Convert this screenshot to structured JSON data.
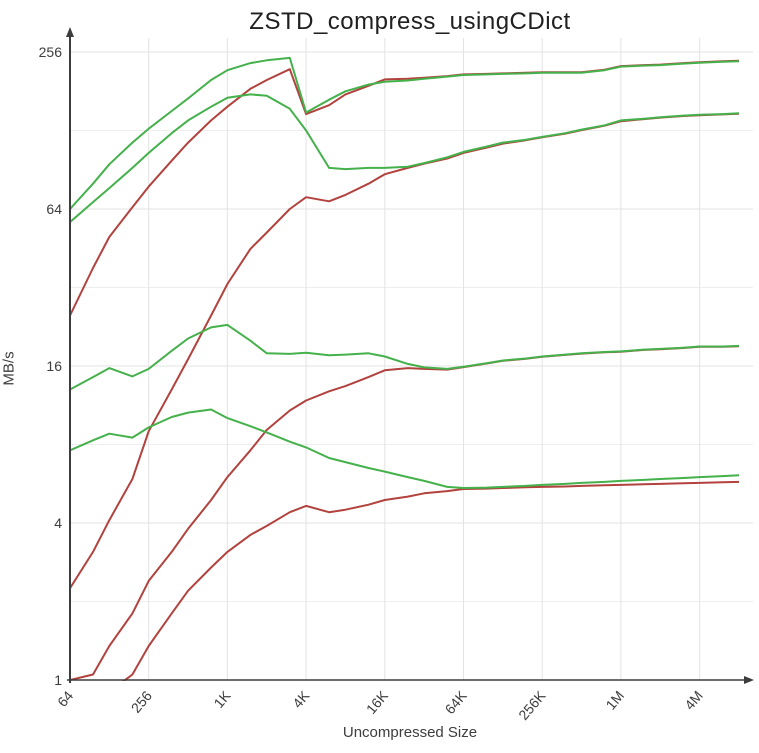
{
  "chart_data": {
    "type": "line",
    "title": "ZSTD_compress_usingCDict",
    "xlabel": "Uncompressed Size",
    "ylabel": "MB/s",
    "x_scale": "log",
    "y_scale": "log",
    "grid": true,
    "legend_position": "none",
    "x_tick_labels": [
      "64",
      "256",
      "1K",
      "4K",
      "16K",
      "64K",
      "256K",
      "1M",
      "4M"
    ],
    "y_tick_labels": [
      "1",
      "4",
      "16",
      "64",
      "256"
    ],
    "x_range_bytes": [
      64,
      8388608
    ],
    "y_range_mbps": [
      1,
      256
    ],
    "colors": {
      "green": "#44b14b",
      "red": "#b2423d",
      "grid_major": "#e3e3e3",
      "grid_minor": "#eeeeee",
      "axis": "#3d3d3d",
      "tick_text": "#3d3d3d",
      "title_text": "#202020"
    },
    "x": [
      64,
      96,
      128,
      192,
      256,
      384,
      512,
      768,
      1024,
      1536,
      2048,
      3072,
      4096,
      6144,
      8192,
      12288,
      16384,
      24576,
      32768,
      49152,
      65536,
      98304,
      131072,
      196608,
      262144,
      393216,
      524288,
      786432,
      1048576,
      1572864,
      2097152,
      3145728,
      4194304,
      6291456,
      8388608
    ],
    "series": [
      {
        "name": "red-1",
        "color": "red",
        "values": [
          25,
          38,
          50,
          65,
          78,
          98,
          115,
          140,
          158,
          185,
          200,
          220,
          148,
          160,
          176,
          190,
          201,
          202,
          204,
          207,
          210,
          211,
          212,
          213,
          214,
          214,
          214,
          219,
          226,
          228,
          229,
          232,
          234,
          236,
          237
        ]
      },
      {
        "name": "red-2",
        "color": "red",
        "values": [
          2.25,
          3.1,
          4.1,
          5.9,
          9,
          13,
          17,
          25,
          33,
          45,
          52,
          64,
          71,
          68.5,
          72.5,
          80,
          87,
          92,
          95.5,
          100,
          105,
          110,
          114,
          117.5,
          120.5,
          124.5,
          128.5,
          133.5,
          139,
          141.5,
          143.5,
          145.5,
          146.5,
          147.5,
          148.5
        ]
      },
      {
        "name": "red-3",
        "color": "red",
        "values": [
          1,
          1.05,
          1.35,
          1.8,
          2.4,
          3.1,
          3.8,
          4.9,
          6,
          7.6,
          9.1,
          10.8,
          11.8,
          12.8,
          13.4,
          14.5,
          15.4,
          15.7,
          15.6,
          15.5,
          15.85,
          16.35,
          16.75,
          17.05,
          17.35,
          17.65,
          17.85,
          18.05,
          18.15,
          18.45,
          18.55,
          18.75,
          18.95,
          18.95,
          19.05
        ]
      },
      {
        "name": "red-4",
        "color": "red",
        "values": [
          0.75,
          0.8,
          0.9,
          1.05,
          1.35,
          1.8,
          2.2,
          2.7,
          3.1,
          3.6,
          3.9,
          4.4,
          4.65,
          4.4,
          4.5,
          4.7,
          4.9,
          5.05,
          5.2,
          5.3,
          5.4,
          5.42,
          5.45,
          5.48,
          5.5,
          5.52,
          5.55,
          5.58,
          5.6,
          5.63,
          5.65,
          5.68,
          5.7,
          5.73,
          5.75
        ]
      },
      {
        "name": "green-1",
        "color": "green",
        "values": [
          64,
          80,
          95,
          115,
          130,
          152,
          170,
          200,
          218,
          232,
          238,
          243,
          150,
          168,
          181,
          192,
          197,
          199,
          202,
          206,
          209,
          210,
          211,
          212,
          213,
          213,
          213,
          218,
          225,
          227,
          228,
          231,
          233,
          235,
          236
        ]
      },
      {
        "name": "green-2",
        "color": "green",
        "values": [
          57,
          68,
          77,
          92,
          105,
          125,
          140,
          158,
          171,
          176,
          174,
          155,
          128,
          92,
          91,
          92,
          92,
          93,
          96,
          101,
          106,
          111,
          115,
          118,
          121,
          125,
          129,
          134,
          140,
          142,
          144,
          146,
          147,
          148,
          149
        ]
      },
      {
        "name": "green-3",
        "color": "green",
        "values": [
          13,
          14.5,
          15.7,
          14.6,
          15.6,
          18.3,
          20.4,
          22.5,
          23,
          20,
          17.9,
          17.8,
          18,
          17.6,
          17.7,
          17.9,
          17.4,
          16.3,
          15.8,
          15.6,
          15.9,
          16.4,
          16.8,
          17.1,
          17.4,
          17.7,
          17.9,
          18.1,
          18.2,
          18.5,
          18.6,
          18.8,
          19,
          19,
          19.1
        ]
      },
      {
        "name": "green-4",
        "color": "green",
        "values": [
          7.6,
          8.3,
          8.8,
          8.5,
          9.3,
          10.2,
          10.6,
          10.9,
          10.1,
          9.4,
          8.9,
          8.2,
          7.8,
          7.1,
          6.85,
          6.5,
          6.3,
          6,
          5.8,
          5.5,
          5.45,
          5.47,
          5.5,
          5.55,
          5.6,
          5.65,
          5.7,
          5.75,
          5.8,
          5.85,
          5.9,
          5.95,
          6,
          6.05,
          6.1
        ]
      }
    ]
  }
}
